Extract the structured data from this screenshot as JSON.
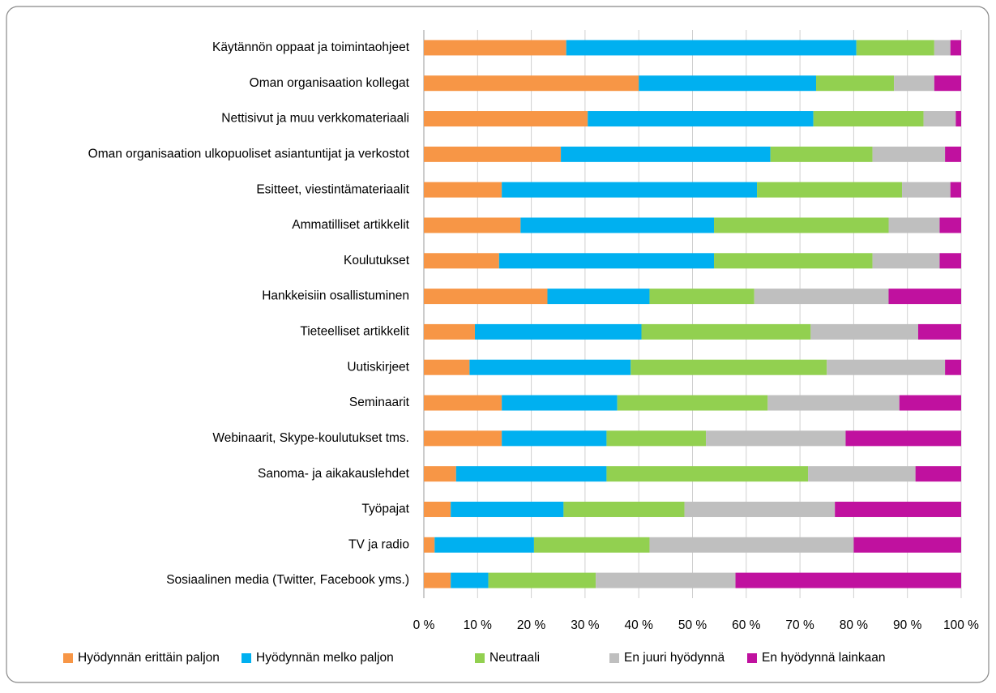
{
  "chart_data": {
    "type": "stacked_bar_horizontal",
    "categories": [
      "Käytännön oppaat ja toimintaohjeet",
      "Oman organisaation kollegat",
      "Nettisivut ja muu verkkomateriaali",
      "Oman organisaation ulkopuoliset asiantuntijat ja verkostot",
      "Esitteet, viestintämateriaalit",
      "Ammatilliset artikkelit",
      "Koulutukset",
      "Hankkeisiin osallistuminen",
      "Tieteelliset artikkelit",
      "Uutiskirjeet",
      "Seminaarit",
      "Webinaarit, Skype-koulutukset tms.",
      "Sanoma- ja aikakauslehdet",
      "Työpajat",
      "TV ja radio",
      "Sosiaalinen media (Twitter, Facebook yms.)"
    ],
    "series": [
      {
        "name": "Hyödynnän erittäin paljon",
        "color": "#f79646",
        "values": [
          26.5,
          40,
          30.5,
          25.5,
          14.5,
          18,
          14,
          23,
          9.5,
          8.5,
          14.5,
          14.5,
          6,
          5,
          2,
          5
        ]
      },
      {
        "name": "Hyödynnän melko paljon",
        "color": "#00b0f0",
        "values": [
          54,
          33,
          42,
          39,
          47.5,
          36,
          40,
          19,
          31,
          30,
          21.5,
          19.5,
          28,
          21,
          18.5,
          7
        ]
      },
      {
        "name": "Neutraali",
        "color": "#92d050",
        "values": [
          14.5,
          14.5,
          20.5,
          19,
          27,
          32.5,
          29.5,
          19.5,
          31.5,
          36.5,
          28,
          18.5,
          37.5,
          22.5,
          21.5,
          20
        ]
      },
      {
        "name": "En juuri hyödynnä",
        "color": "#bfbfbf",
        "values": [
          3,
          7.5,
          6,
          13.5,
          9,
          9.5,
          12.5,
          25,
          20,
          22,
          24.5,
          26,
          20,
          28,
          38,
          26
        ]
      },
      {
        "name": "En hyödynnä lainkaan",
        "color": "#c0119f",
        "values": [
          2,
          5,
          1,
          3,
          2,
          4,
          4,
          13.5,
          8,
          3,
          11.5,
          21.5,
          8.5,
          23.5,
          20,
          42
        ]
      }
    ],
    "xlim": [
      0,
      100
    ],
    "xticks": [
      {
        "value": 0,
        "label": "0 %"
      },
      {
        "value": 10,
        "label": "10 %"
      },
      {
        "value": 20,
        "label": "20 %"
      },
      {
        "value": 30,
        "label": "30 %"
      },
      {
        "value": 40,
        "label": "40 %"
      },
      {
        "value": 50,
        "label": "50 %"
      },
      {
        "value": 60,
        "label": "60 %"
      },
      {
        "value": 70,
        "label": "70 %"
      },
      {
        "value": 80,
        "label": "80 %"
      },
      {
        "value": 90,
        "label": "90 %"
      },
      {
        "value": 100,
        "label": "100 %"
      }
    ],
    "grid": true,
    "legend": "bottom"
  }
}
